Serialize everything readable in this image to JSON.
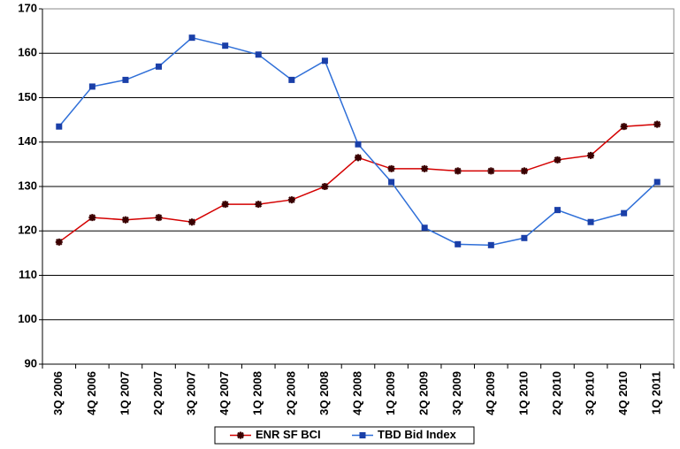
{
  "chart_data": {
    "type": "line",
    "categories": [
      "3Q 2006",
      "4Q 2006",
      "1Q 2007",
      "2Q 2007",
      "3Q 2007",
      "4Q 2007",
      "1Q 2008",
      "2Q 2008",
      "3Q 2008",
      "4Q 2008",
      "1Q 2009",
      "2Q 2009",
      "3Q 2009",
      "4Q 2009",
      "1Q 2010",
      "2Q 2010",
      "3Q 2010",
      "4Q 2010",
      "1Q 2011"
    ],
    "series": [
      {
        "name": "ENR SF BCI",
        "color": "#d40000",
        "marker_color": "#3a0000",
        "marker": "star",
        "values": [
          117.5,
          123,
          122.5,
          123,
          122,
          126,
          126,
          127,
          130,
          136.5,
          134,
          134,
          133.5,
          133.5,
          133.5,
          136,
          137,
          143.5,
          144
        ]
      },
      {
        "name": "TBD Bid Index",
        "color": "#2f6fd8",
        "marker_color": "#1a3fa8",
        "marker": "square",
        "values": [
          143.5,
          152.5,
          154,
          157,
          163.5,
          161.7,
          159.7,
          154,
          158.3,
          139.5,
          131,
          120.7,
          117,
          116.8,
          118.4,
          124.7,
          122,
          124,
          131
        ]
      }
    ],
    "ylim": [
      90,
      170
    ],
    "yticks": [
      90,
      100,
      110,
      120,
      130,
      140,
      150,
      160,
      170
    ],
    "grid": true,
    "legend": "bottom"
  }
}
